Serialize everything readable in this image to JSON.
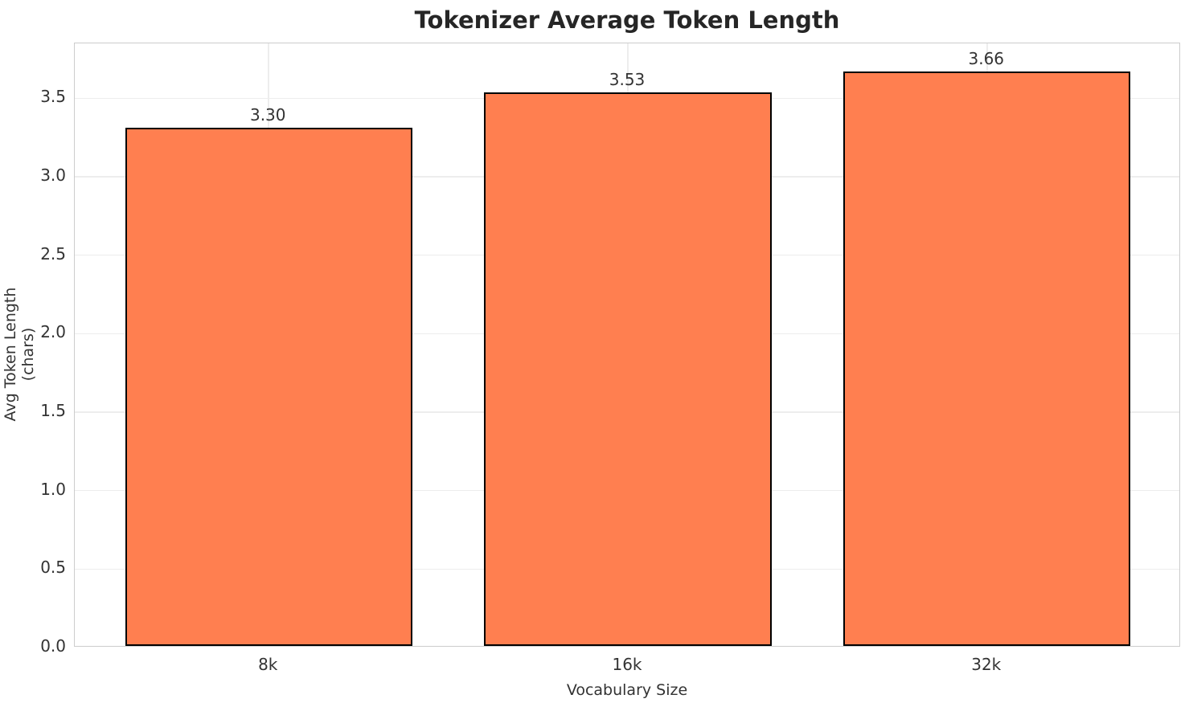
{
  "chart_data": {
    "type": "bar",
    "title": "Tokenizer Average Token Length",
    "categories": [
      "8k",
      "16k",
      "32k"
    ],
    "values": [
      3.3,
      3.53,
      3.66
    ],
    "value_labels": [
      "3.30",
      "3.53",
      "3.66"
    ],
    "xlabel": "Vocabulary Size",
    "ylabel": "Avg Token Length (chars)",
    "ylim": [
      0,
      3.85
    ],
    "yticks": [
      0.0,
      0.5,
      1.0,
      1.5,
      2.0,
      2.5,
      3.0,
      3.5
    ],
    "ytick_labels": [
      "0.0",
      "0.5",
      "1.0",
      "1.5",
      "2.0",
      "2.5",
      "3.0",
      "3.5"
    ],
    "grid": true,
    "legend_position": "none",
    "bar_color": "#FF7F50",
    "bar_edge_color": "#000000"
  },
  "colors": {
    "background": "#ffffff",
    "grid": "#ededed",
    "spine": "#cccccc",
    "text": "#333333",
    "title": "#262626"
  }
}
